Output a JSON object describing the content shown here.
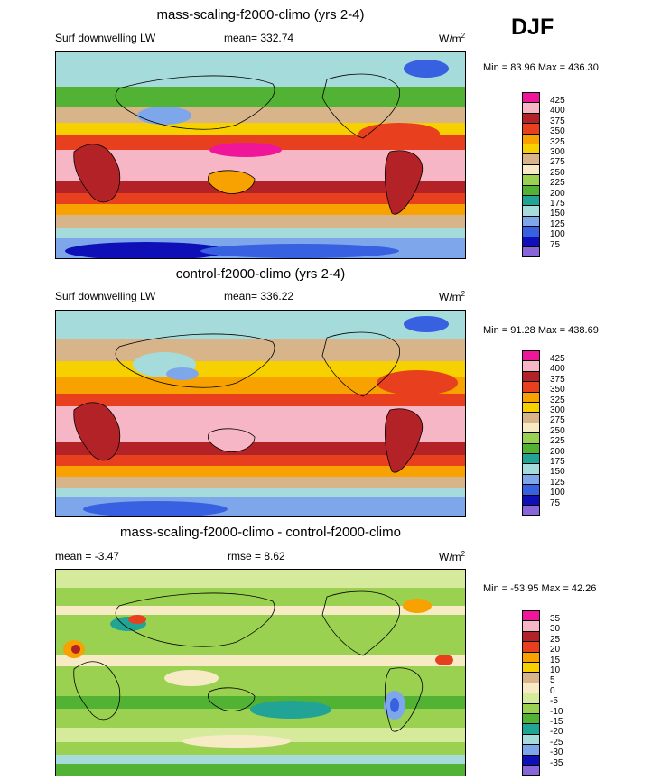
{
  "season": "DJF",
  "panels": [
    {
      "id": "top",
      "title": "mass-scaling-f2000-climo (yrs 2-4)",
      "left_label": "Surf downwelling LW",
      "center_label": "mean= 332.74",
      "units_base": "W/m",
      "units_exp": "2",
      "minmax": "Min =  83.96 Max = 436.30",
      "levels": [
        "425",
        "400",
        "375",
        "350",
        "325",
        "300",
        "275",
        "250",
        "225",
        "200",
        "175",
        "150",
        "125",
        "100",
        "75"
      ],
      "colors": [
        "#f0169a",
        "#f7b6c6",
        "#b32226",
        "#e8401e",
        "#f7a200",
        "#f7d000",
        "#d7b48a",
        "#f6ebc5",
        "#9bd150",
        "#52b233",
        "#21a395",
        "#a6dbdc",
        "#7da7ea",
        "#3761e1",
        "#0f0fb8",
        "#8866d9"
      ]
    },
    {
      "id": "middle",
      "title": "control-f2000-climo (yrs 2-4)",
      "left_label": "Surf downwelling LW",
      "center_label": "mean= 336.22",
      "units_base": "W/m",
      "units_exp": "2",
      "minmax": "Min =  91.28 Max = 438.69",
      "levels": [
        "425",
        "400",
        "375",
        "350",
        "325",
        "300",
        "275",
        "250",
        "225",
        "200",
        "175",
        "150",
        "125",
        "100",
        "75"
      ],
      "colors": [
        "#f0169a",
        "#f7b6c6",
        "#b32226",
        "#e8401e",
        "#f7a200",
        "#f7d000",
        "#d7b48a",
        "#f6ebc5",
        "#9bd150",
        "#52b233",
        "#21a395",
        "#a6dbdc",
        "#7da7ea",
        "#3761e1",
        "#0f0fb8",
        "#8866d9"
      ]
    },
    {
      "id": "bottom",
      "title": "mass-scaling-f2000-climo - control-f2000-climo",
      "left_label": "mean =  -3.47",
      "center_label": "rmse =   8.62",
      "units_base": "W/m",
      "units_exp": "2",
      "minmax": "Min = -53.95 Max =  42.26",
      "levels": [
        "35",
        "30",
        "25",
        "20",
        "15",
        "10",
        "5",
        "0",
        "-5",
        "-10",
        "-15",
        "-20",
        "-25",
        "-30",
        "-35"
      ],
      "colors": [
        "#f0169a",
        "#f7b6c6",
        "#b32226",
        "#e8401e",
        "#f7a200",
        "#f7d000",
        "#d7b48a",
        "#f6ebc5",
        "#d6ea9b",
        "#9bd150",
        "#52b233",
        "#21a395",
        "#a6dbdc",
        "#7da7ea",
        "#0f0fb8",
        "#8866d9"
      ]
    }
  ]
}
